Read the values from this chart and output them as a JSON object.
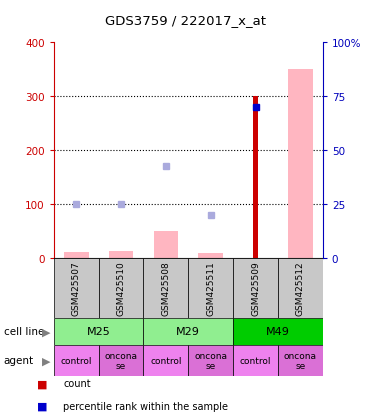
{
  "title": "GDS3759 / 222017_x_at",
  "samples": [
    "GSM425507",
    "GSM425510",
    "GSM425508",
    "GSM425511",
    "GSM425509",
    "GSM425512"
  ],
  "cell_line_groups": [
    {
      "label": "M25",
      "span": [
        0,
        2
      ],
      "color": "#90EE90"
    },
    {
      "label": "M29",
      "span": [
        2,
        4
      ],
      "color": "#90EE90"
    },
    {
      "label": "M49",
      "span": [
        4,
        6
      ],
      "color": "#00CC00"
    }
  ],
  "agent_groups": [
    {
      "label": "control",
      "span": [
        0,
        1
      ],
      "color": "#EE82EE"
    },
    {
      "label": "oncona\nse",
      "span": [
        1,
        2
      ],
      "color": "#DA70D6"
    },
    {
      "label": "control",
      "span": [
        2,
        3
      ],
      "color": "#EE82EE"
    },
    {
      "label": "oncona\nse",
      "span": [
        3,
        4
      ],
      "color": "#DA70D6"
    },
    {
      "label": "control",
      "span": [
        4,
        5
      ],
      "color": "#EE82EE"
    },
    {
      "label": "oncona\nse",
      "span": [
        5,
        6
      ],
      "color": "#DA70D6"
    }
  ],
  "count_values": [
    null,
    null,
    null,
    null,
    300,
    null
  ],
  "percentile_values": [
    null,
    null,
    null,
    null,
    280,
    null
  ],
  "absent_value_bars": [
    10,
    12,
    50,
    8,
    null,
    350
  ],
  "absent_rank_dots": [
    100,
    100,
    170,
    80,
    null,
    null
  ],
  "ylim_left": [
    0,
    400
  ],
  "ylim_right": [
    0,
    100
  ],
  "left_ticks": [
    0,
    100,
    200,
    300,
    400
  ],
  "right_ticks": [
    0,
    25,
    50,
    75,
    100
  ],
  "left_tick_labels": [
    "0",
    "100",
    "200",
    "300",
    "400"
  ],
  "right_tick_labels": [
    "0",
    "25",
    "50",
    "75",
    "100%"
  ],
  "count_color": "#CC0000",
  "percentile_color": "#0000CC",
  "absent_value_color": "#FFB6C1",
  "absent_rank_color": "#AAAADD",
  "left_axis_color": "#CC0000",
  "right_axis_color": "#0000BB",
  "bg_color": "#FFFFFF",
  "grid_color": "#000000",
  "bar_width": 0.55,
  "count_bar_width": 0.12
}
